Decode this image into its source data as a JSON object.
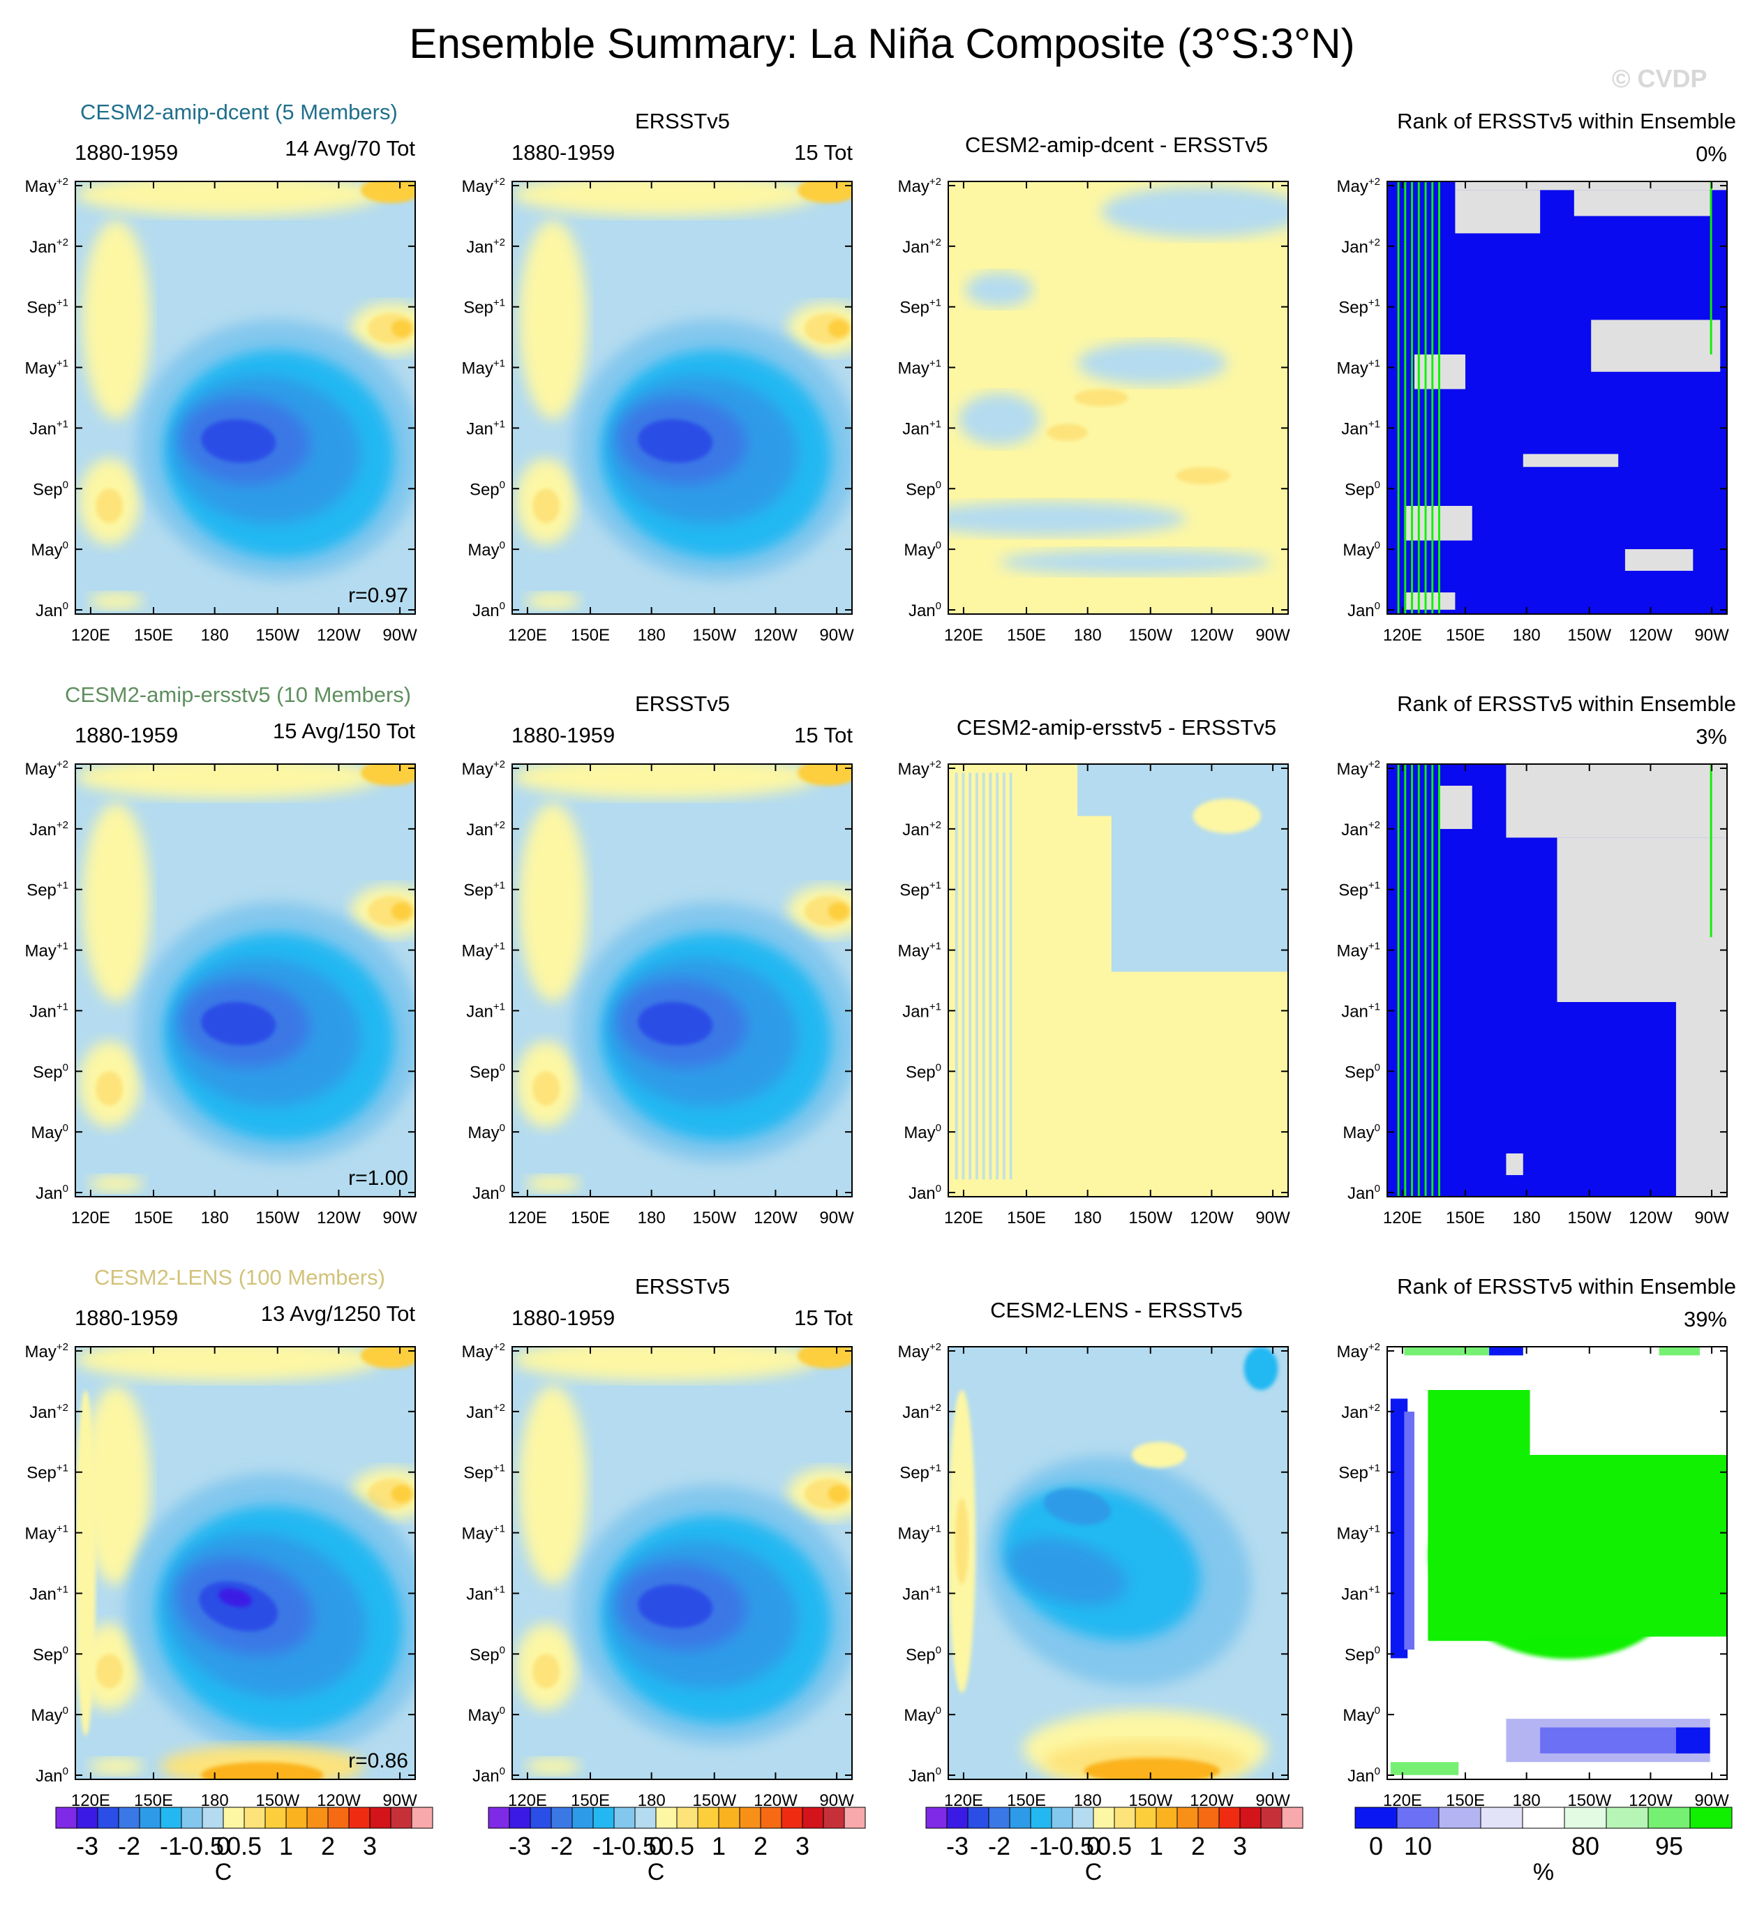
{
  "figure": {
    "title": "Ensemble Summary: La Niña Composite (3°S:3°N)",
    "watermark": "© CVDP"
  },
  "rows": [
    {
      "ensemble": "CESM2-amip-dcent (5 Members)",
      "ensemble_color": "#1f6f8b",
      "period": "1880-1959",
      "model_count": "14 Avg/70 Tot",
      "correlation": "r=0.97",
      "obs_title": "ERSSTv5",
      "obs_count": "15 Tot",
      "diff_title": "CESM2-amip-dcent - ERSSTv5",
      "rank_title": "Rank of ERSSTv5 within Ensemble",
      "rank_pct": "0%"
    },
    {
      "ensemble": "CESM2-amip-ersstv5 (10 Members)",
      "ensemble_color": "#5e8f5e",
      "period": "1880-1959",
      "model_count": "15 Avg/150 Tot",
      "correlation": "r=1.00",
      "obs_title": "ERSSTv5",
      "obs_count": "15 Tot",
      "diff_title": "CESM2-amip-ersstv5 - ERSSTv5",
      "rank_title": "Rank of ERSSTv5 within Ensemble",
      "rank_pct": "3%"
    },
    {
      "ensemble": "CESM2-LENS (100 Members)",
      "ensemble_color": "#d2c27a",
      "period": "1880-1959",
      "model_count": "13 Avg/1250 Tot",
      "correlation": "r=0.86",
      "obs_title": "ERSSTv5",
      "obs_count": "15 Tot",
      "diff_title": "CESM2-LENS - ERSSTv5",
      "rank_title": "Rank of ERSSTv5 within Ensemble",
      "rank_pct": "39%"
    }
  ],
  "chart_data": {
    "type": "heatmap",
    "x_tick_labels": [
      "120E",
      "150E",
      "180",
      "150W",
      "120W",
      "90W"
    ],
    "y_ticks": [
      {
        "base": "Jan",
        "sup": "0"
      },
      {
        "base": "May",
        "sup": "0"
      },
      {
        "base": "Sep",
        "sup": "0"
      },
      {
        "base": "Jan",
        "sup": "+1"
      },
      {
        "base": "May",
        "sup": "+1"
      },
      {
        "base": "Sep",
        "sup": "+1"
      },
      {
        "base": "Jan",
        "sup": "+2"
      },
      {
        "base": "May",
        "sup": "+2"
      }
    ],
    "sst_colorbar": {
      "colors": [
        "#7f2ae6",
        "#3b1ae6",
        "#2a4ee6",
        "#3a78e6",
        "#2d9be8",
        "#24b8f2",
        "#83c7ee",
        "#b4dbef",
        "#fdf7a4",
        "#fde37a",
        "#fdce3c",
        "#fbb21f",
        "#f89018",
        "#f56a13",
        "#ef2c12",
        "#d3141a",
        "#c63139",
        "#f8a9ab"
      ],
      "labels": [
        "-3",
        "-2",
        "-1",
        "-0.5",
        "0",
        "0.5",
        "1",
        "2",
        "3"
      ],
      "unit": "C"
    },
    "rank_colorbar": {
      "colors": [
        "#0b17f2",
        "#6b70f4",
        "#b4b4f3",
        "#e2e3f8",
        "#ffffff",
        "#e2fbe2",
        "#b7f5b6",
        "#76f072",
        "#10f000"
      ],
      "labels": [
        "0",
        "10",
        "80",
        "95"
      ],
      "unit": "%"
    }
  }
}
